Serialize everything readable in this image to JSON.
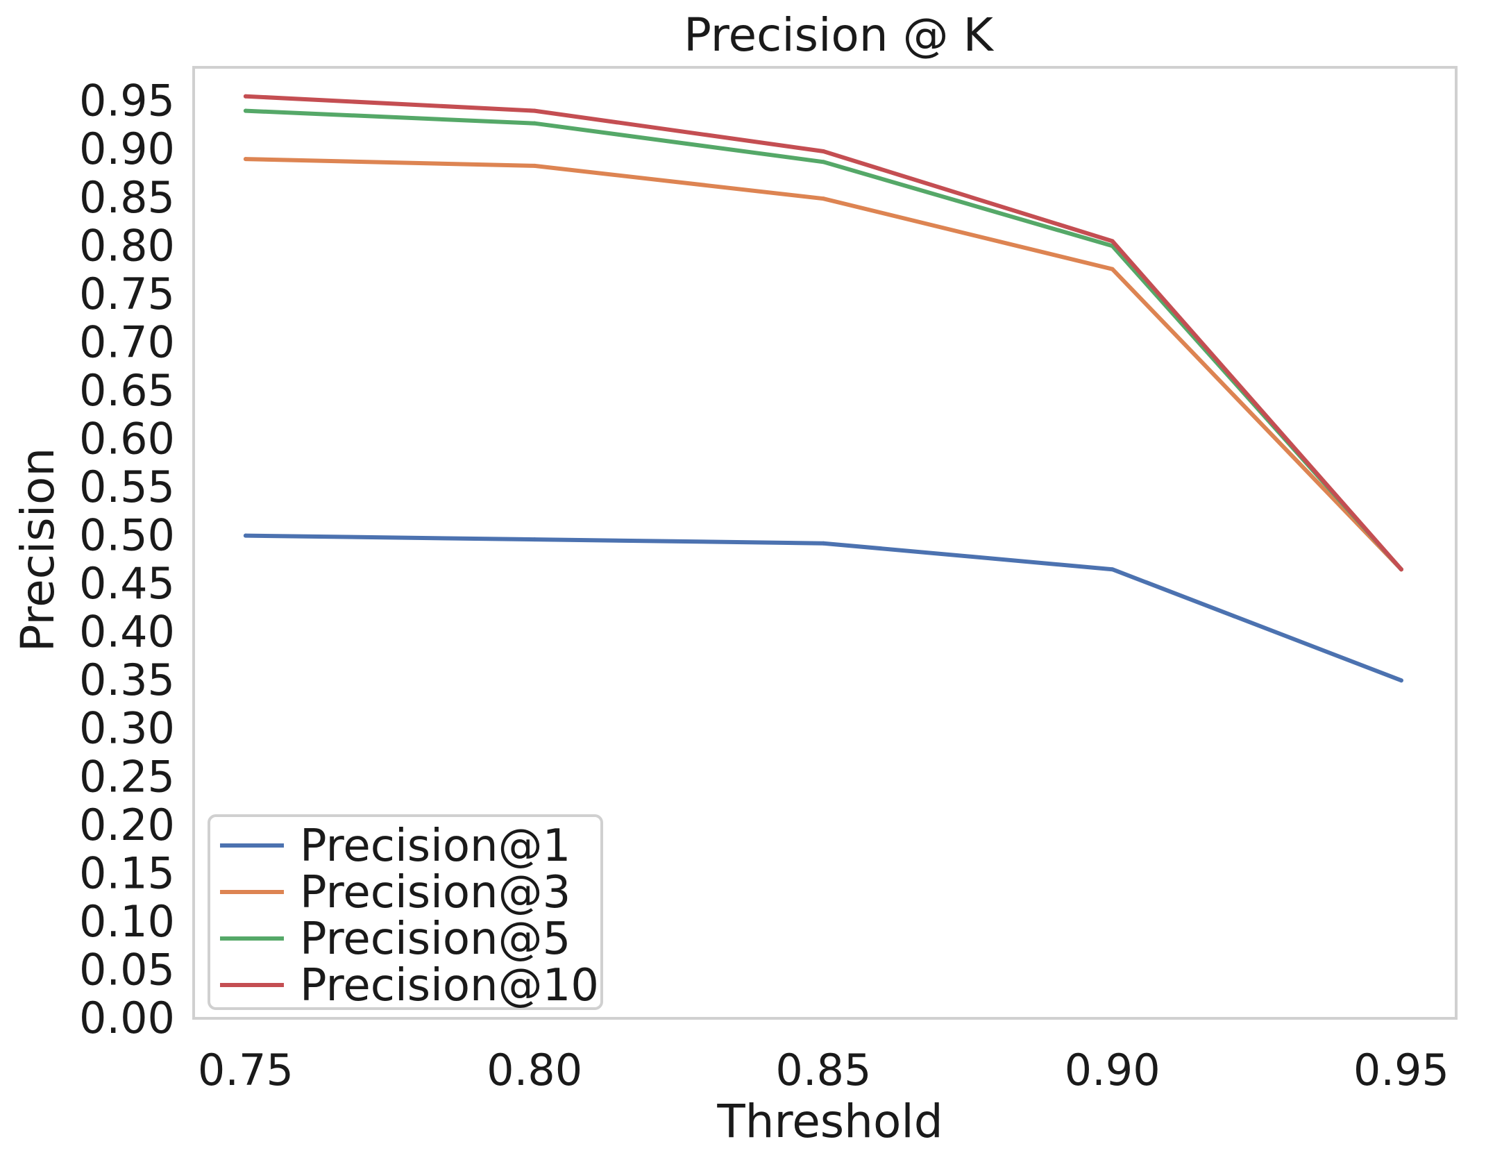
{
  "chart_data": {
    "type": "line",
    "title": "Precision @ K",
    "xlabel": "Threshold",
    "ylabel": "Precision",
    "x": [
      0.75,
      0.8,
      0.85,
      0.9,
      0.95
    ],
    "x_tick_labels": [
      "0.75",
      "0.80",
      "0.85",
      "0.90",
      "0.95"
    ],
    "y_tick_labels": [
      "0.00",
      "0.05",
      "0.10",
      "0.15",
      "0.20",
      "0.25",
      "0.30",
      "0.35",
      "0.40",
      "0.45",
      "0.50",
      "0.55",
      "0.60",
      "0.65",
      "0.70",
      "0.75",
      "0.80",
      "0.85",
      "0.90",
      "0.95"
    ],
    "xlim": [
      0.741,
      0.9595
    ],
    "ylim": [
      0.0,
      0.985
    ],
    "grid": false,
    "legend_position": "bottom-left",
    "series": [
      {
        "name": "Precision@1",
        "color": "#4c72b0",
        "values": [
          0.5,
          0.496,
          0.492,
          0.465,
          0.35
        ]
      },
      {
        "name": "Precision@3",
        "color": "#dd8452",
        "values": [
          0.89,
          0.883,
          0.849,
          0.776,
          0.465
        ]
      },
      {
        "name": "Precision@5",
        "color": "#55a868",
        "values": [
          0.94,
          0.927,
          0.887,
          0.8,
          0.465
        ]
      },
      {
        "name": "Precision@10",
        "color": "#c44e52",
        "values": [
          0.955,
          0.94,
          0.898,
          0.805,
          0.465
        ]
      }
    ]
  }
}
